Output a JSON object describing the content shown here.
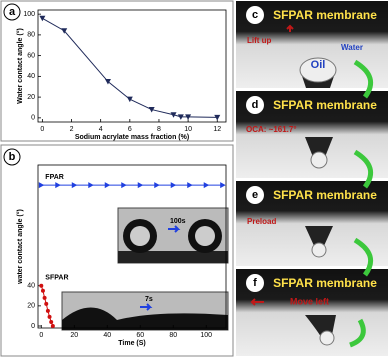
{
  "chart_data": [
    {
      "type": "line",
      "panel": "a",
      "x_label": "Sodium acrylate mass fraction (%)",
      "y_label": "Water contact angle (°)",
      "series": [
        {
          "name": null,
          "color": "#1f2a5a",
          "marker": "triangle-down",
          "x": [
            0,
            1.5,
            4.5,
            6,
            7.5,
            9,
            9.5,
            10,
            12
          ],
          "values": [
            96,
            84,
            35,
            18,
            8,
            3,
            1,
            1,
            0.5
          ]
        }
      ],
      "xlim": [
        -0.3,
        12.6
      ],
      "ylim": [
        -4,
        104
      ],
      "xticks": [
        0,
        2,
        4,
        6,
        8,
        10,
        12
      ],
      "yticks": [
        0,
        20,
        40,
        60,
        80,
        100
      ]
    },
    {
      "type": "line",
      "panel": "b",
      "x_label": "Time (S)",
      "y_label": "water contact angle (°)",
      "series": [
        {
          "name": "FPAR",
          "color": "#2040e0",
          "marker": "triangle-right",
          "x": [
            0,
            10,
            20,
            30,
            40,
            50,
            60,
            70,
            80,
            90,
            100,
            110
          ],
          "values": [
            140,
            140,
            140,
            140,
            140,
            140,
            140,
            140,
            140,
            140,
            140,
            140
          ]
        },
        {
          "name": "SFPAR",
          "color": "#d01010",
          "marker": "circle",
          "x": [
            0,
            1,
            2,
            3,
            4,
            5,
            6,
            7
          ],
          "values": [
            40,
            35,
            28,
            22,
            15,
            9,
            4,
            0
          ]
        }
      ],
      "inset_labels": [
        "100s",
        "7s"
      ],
      "xlim": [
        -2,
        112
      ],
      "ylim": [
        -2,
        160
      ],
      "xticks": [
        0,
        20,
        40,
        60,
        80,
        100
      ],
      "yticks": [
        0,
        20,
        40
      ]
    }
  ],
  "panels": [
    {
      "label": "c",
      "title": "SFPAR membrane",
      "notes": [
        "Lift up",
        "Water",
        "Oil"
      ]
    },
    {
      "label": "d",
      "title": "SFPAR membrane",
      "notes": [
        "OCA: ~161.7°"
      ]
    },
    {
      "label": "e",
      "title": "SFPAR membrane",
      "notes": [
        "Preload"
      ]
    },
    {
      "label": "f",
      "title": "SFPAR membrane",
      "notes": [
        "Move left"
      ]
    }
  ]
}
